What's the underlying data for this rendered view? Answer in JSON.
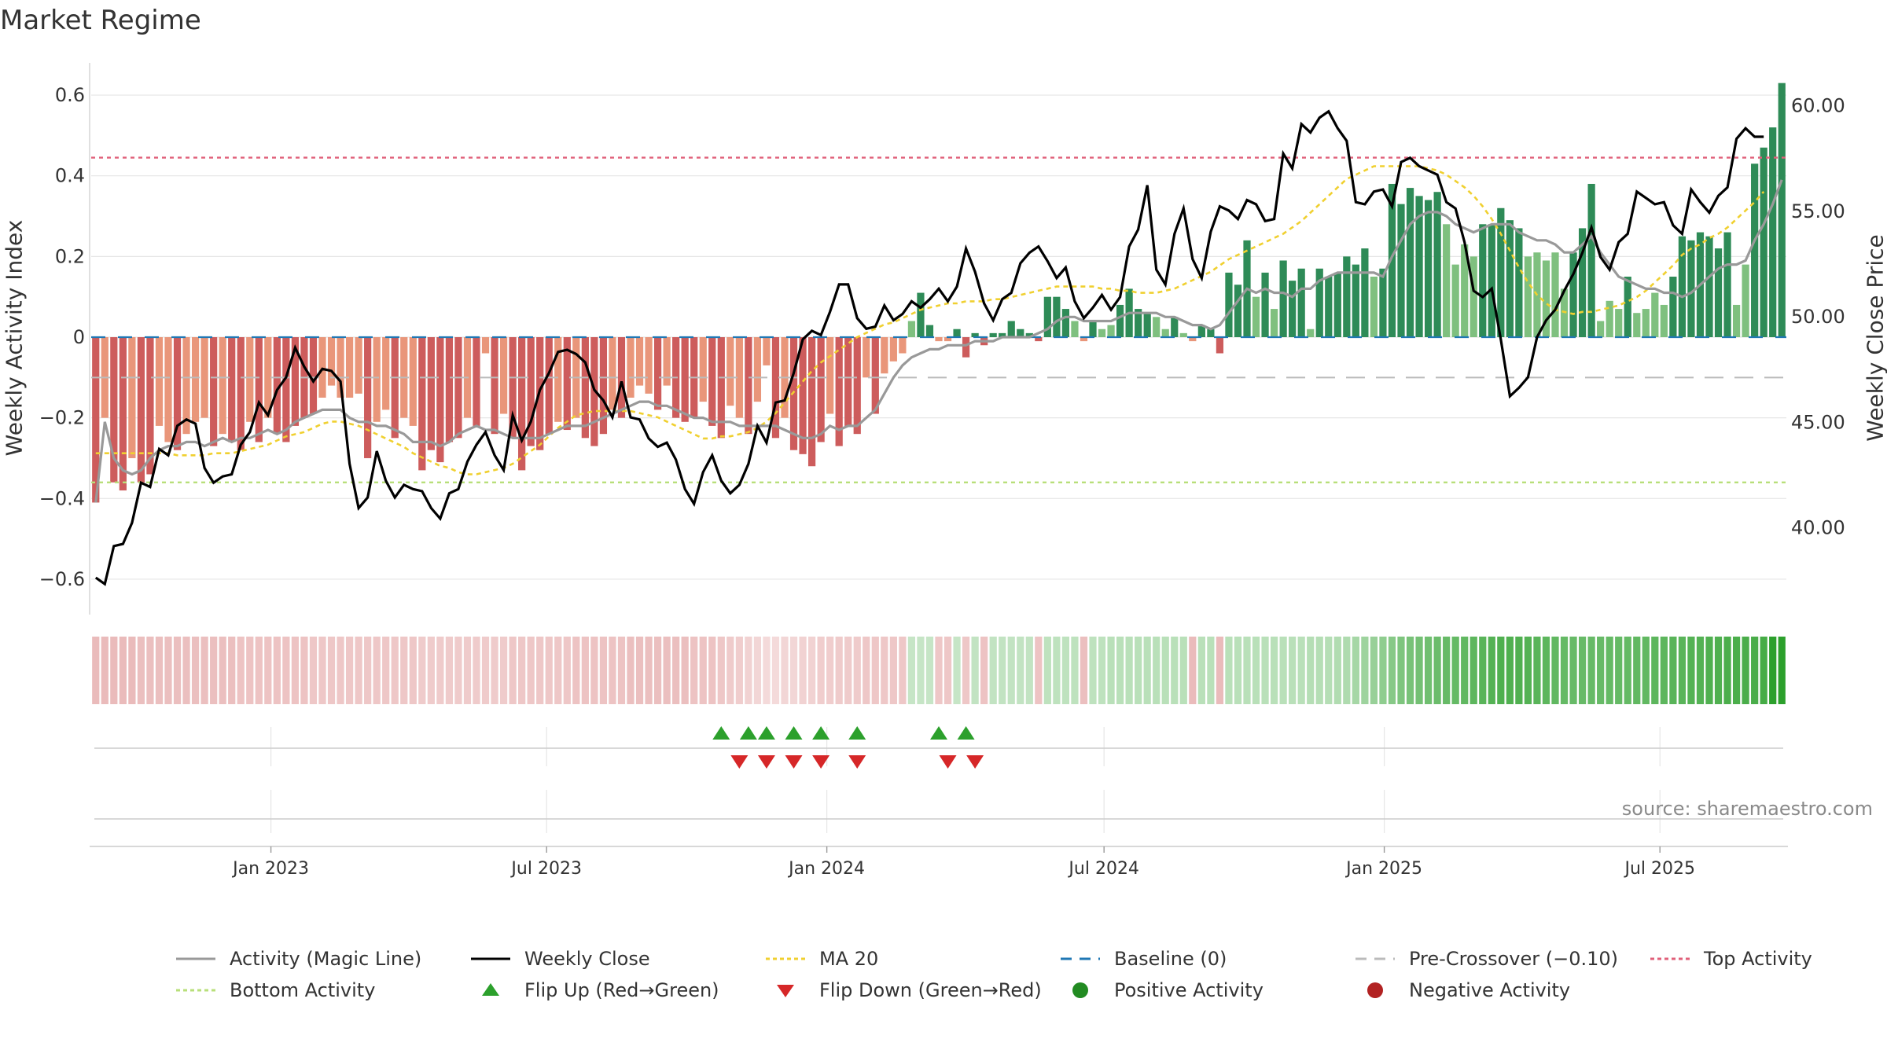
{
  "title": "Market Regime",
  "source": "source: sharemaestro.com",
  "colors": {
    "neg_dark": "#cd5c5c",
    "neg_light": "#e9967a",
    "pos_dark": "#2e8b57",
    "pos_light": "#7fc07f",
    "close": "#000000",
    "magic": "#999999",
    "ma": "#f0d030",
    "baseline": "#1f77b4",
    "pre_cross": "#bbbbbb",
    "top": "#e0607a",
    "bottom": "#b8df7a",
    "flip_up": "#2ca02c",
    "flip_down": "#d62728"
  },
  "chart_data": {
    "type": "bar",
    "title": "Market Regime",
    "ylabel": "Weekly Activity Index",
    "ylabel_right": "Weekly Close Price",
    "ylim": [
      -0.68,
      0.68
    ],
    "ylim_right": [
      36.0,
      62.0
    ],
    "yticks": [
      -0.6,
      -0.4,
      -0.2,
      0,
      0.2,
      0.4,
      0.6
    ],
    "ytick_labels": [
      "−0.6",
      "−0.4",
      "−0.2",
      "0",
      "0.2",
      "0.4",
      "0.6"
    ],
    "yticks_right": [
      40,
      45,
      50,
      55,
      60
    ],
    "ytick_labels_right": [
      "40.00",
      "45.00",
      "50.00",
      "55.00",
      "60.00"
    ],
    "x_start": "2022-09-05",
    "x_end": "2025-09-22",
    "xticks": [
      "2023-01-01",
      "2023-07-01",
      "2024-01-01",
      "2024-07-01",
      "2025-01-01",
      "2025-07-01"
    ],
    "xtick_labels": [
      "Jan 2023",
      "Jul 2023",
      "Jan 2024",
      "Jul 2024",
      "Jan 2025",
      "Jul 2025"
    ],
    "grid": true,
    "legend_position": "bottom",
    "reference_lines": {
      "baseline": 0,
      "pre_crossover": -0.1,
      "top_activity": 0.445,
      "bottom_activity": -0.36
    },
    "activity_weekly": [
      -0.41,
      -0.2,
      -0.36,
      -0.38,
      -0.3,
      -0.36,
      -0.34,
      -0.22,
      -0.26,
      -0.28,
      -0.24,
      -0.21,
      -0.2,
      -0.27,
      -0.24,
      -0.26,
      -0.28,
      -0.21,
      -0.26,
      -0.2,
      -0.24,
      -0.26,
      -0.22,
      -0.2,
      -0.19,
      -0.15,
      -0.12,
      -0.15,
      -0.15,
      -0.14,
      -0.3,
      -0.21,
      -0.18,
      -0.25,
      -0.2,
      -0.22,
      -0.33,
      -0.28,
      -0.31,
      -0.26,
      -0.25,
      -0.2,
      -0.22,
      -0.04,
      -0.24,
      -0.19,
      -0.25,
      -0.33,
      -0.27,
      -0.28,
      -0.24,
      -0.21,
      -0.23,
      -0.2,
      -0.25,
      -0.27,
      -0.24,
      -0.18,
      -0.2,
      -0.15,
      -0.12,
      -0.14,
      -0.18,
      -0.12,
      -0.2,
      -0.21,
      -0.2,
      -0.16,
      -0.22,
      -0.25,
      -0.17,
      -0.2,
      -0.24,
      -0.16,
      -0.07,
      -0.25,
      -0.2,
      -0.28,
      -0.29,
      -0.32,
      -0.26,
      -0.19,
      -0.27,
      -0.22,
      -0.24,
      -0.1,
      -0.19,
      -0.09,
      -0.06,
      -0.04,
      0.04,
      0.11,
      0.03,
      -0.01,
      -0.01,
      0.02,
      -0.05,
      0.01,
      -0.02,
      0.01,
      0.01,
      0.04,
      0.02,
      0.01,
      -0.01,
      0.1,
      0.1,
      0.07,
      0.04,
      -0.01,
      0.04,
      0.02,
      0.03,
      0.08,
      0.12,
      0.07,
      0.06,
      0.05,
      0.02,
      0.05,
      0.01,
      -0.01,
      0.03,
      0.02,
      -0.04,
      0.16,
      0.13,
      0.24,
      0.1,
      0.16,
      0.07,
      0.19,
      0.14,
      0.17,
      0.02,
      0.17,
      0.15,
      0.16,
      0.2,
      0.18,
      0.22,
      0.15,
      0.17,
      0.38,
      0.33,
      0.37,
      0.35,
      0.34,
      0.36,
      0.28,
      0.18,
      0.23,
      0.2,
      0.28,
      0.28,
      0.32,
      0.29,
      0.27,
      0.2,
      0.21,
      0.19,
      0.21,
      0.12,
      0.21,
      0.27,
      0.38,
      0.04,
      0.09,
      0.07,
      0.15,
      0.06,
      0.07,
      0.11,
      0.08,
      0.15,
      0.25,
      0.24,
      0.26,
      0.25,
      0.22,
      0.26,
      0.08,
      0.18,
      0.43,
      0.47,
      0.52,
      0.63
    ],
    "weekly_close": [
      37.6,
      37.3,
      39.1,
      39.2,
      40.2,
      42.1,
      41.9,
      43.7,
      43.4,
      44.8,
      45.1,
      44.9,
      42.8,
      42.1,
      42.4,
      42.5,
      43.9,
      44.5,
      45.9,
      45.3,
      46.5,
      47.1,
      48.5,
      47.6,
      46.9,
      47.5,
      47.4,
      46.9,
      43.0,
      40.9,
      41.4,
      43.6,
      42.2,
      41.4,
      42.0,
      41.8,
      41.7,
      40.9,
      40.4,
      41.6,
      41.8,
      43.1,
      43.9,
      44.5,
      43.4,
      42.7,
      45.3,
      44.1,
      45.0,
      46.5,
      47.3,
      48.3,
      48.4,
      48.2,
      47.8,
      46.5,
      46.0,
      45.2,
      46.9,
      45.2,
      45.1,
      44.2,
      43.8,
      44.0,
      43.2,
      41.8,
      41.1,
      42.6,
      43.4,
      42.2,
      41.6,
      42.0,
      43.0,
      44.8,
      44.0,
      45.9,
      46.0,
      47.3,
      48.9,
      49.3,
      49.1,
      50.2,
      51.5,
      51.5,
      49.9,
      49.4,
      49.5,
      50.5,
      49.8,
      50.1,
      50.7,
      50.4,
      50.8,
      51.3,
      50.7,
      51.4,
      53.2,
      52.1,
      50.6,
      49.8,
      50.8,
      51.1,
      52.5,
      53.0,
      53.3,
      52.6,
      51.8,
      52.3,
      50.7,
      49.9,
      50.4,
      51.0,
      50.3,
      50.9,
      53.3,
      54.1,
      56.2,
      52.2,
      51.5,
      53.9,
      55.1,
      52.7,
      51.8,
      54.0,
      55.2,
      55.0,
      54.6,
      55.5,
      55.3,
      54.5,
      54.6,
      57.7,
      57.0,
      59.1,
      58.7,
      59.4,
      59.7,
      58.9,
      58.3,
      55.4,
      55.3,
      55.9,
      56.0,
      55.2,
      57.3,
      57.5,
      57.1,
      56.9,
      56.7,
      55.4,
      55.1,
      53.5,
      51.2,
      50.9,
      51.3,
      48.9,
      46.2,
      46.6,
      47.1,
      49.0,
      49.8,
      50.3,
      51.2,
      52.0,
      53.0,
      54.2,
      52.8,
      52.2,
      53.5,
      53.9,
      55.9,
      55.6,
      55.3,
      55.4,
      54.3,
      53.9,
      56.0,
      55.4,
      54.9,
      55.7,
      56.1,
      58.4,
      58.9,
      58.5,
      58.5
    ],
    "activity_magic_line": [
      -0.41,
      -0.21,
      -0.3,
      -0.33,
      -0.34,
      -0.33,
      -0.3,
      -0.28,
      -0.27,
      -0.27,
      -0.26,
      -0.26,
      -0.27,
      -0.26,
      -0.25,
      -0.26,
      -0.25,
      -0.25,
      -0.24,
      -0.23,
      -0.24,
      -0.23,
      -0.21,
      -0.2,
      -0.19,
      -0.18,
      -0.18,
      -0.18,
      -0.2,
      -0.21,
      -0.21,
      -0.22,
      -0.22,
      -0.23,
      -0.24,
      -0.26,
      -0.26,
      -0.26,
      -0.27,
      -0.26,
      -0.24,
      -0.23,
      -0.22,
      -0.23,
      -0.23,
      -0.24,
      -0.25,
      -0.25,
      -0.25,
      -0.25,
      -0.24,
      -0.23,
      -0.22,
      -0.22,
      -0.22,
      -0.21,
      -0.2,
      -0.19,
      -0.18,
      -0.17,
      -0.16,
      -0.16,
      -0.17,
      -0.17,
      -0.18,
      -0.19,
      -0.2,
      -0.2,
      -0.21,
      -0.21,
      -0.21,
      -0.22,
      -0.22,
      -0.22,
      -0.22,
      -0.22,
      -0.23,
      -0.24,
      -0.25,
      -0.25,
      -0.24,
      -0.22,
      -0.23,
      -0.22,
      -0.22,
      -0.2,
      -0.18,
      -0.14,
      -0.1,
      -0.07,
      -0.05,
      -0.04,
      -0.03,
      -0.03,
      -0.02,
      -0.02,
      -0.02,
      -0.01,
      -0.01,
      -0.01,
      0.0,
      0.0,
      0.0,
      0.0,
      0.01,
      0.02,
      0.04,
      0.05,
      0.05,
      0.04,
      0.04,
      0.04,
      0.04,
      0.05,
      0.06,
      0.06,
      0.06,
      0.06,
      0.05,
      0.05,
      0.04,
      0.03,
      0.03,
      0.02,
      0.03,
      0.06,
      0.09,
      0.12,
      0.11,
      0.12,
      0.11,
      0.11,
      0.1,
      0.12,
      0.12,
      0.14,
      0.15,
      0.16,
      0.16,
      0.16,
      0.16,
      0.16,
      0.15,
      0.2,
      0.24,
      0.28,
      0.3,
      0.31,
      0.31,
      0.3,
      0.28,
      0.27,
      0.26,
      0.27,
      0.28,
      0.28,
      0.28,
      0.26,
      0.25,
      0.24,
      0.24,
      0.23,
      0.21,
      0.21,
      0.23,
      0.25,
      0.21,
      0.18,
      0.15,
      0.14,
      0.13,
      0.12,
      0.12,
      0.11,
      0.11,
      0.1,
      0.11,
      0.13,
      0.15,
      0.17,
      0.18,
      0.18,
      0.19,
      0.24,
      0.28,
      0.33,
      0.39
    ],
    "ma20": [
      43.5,
      43.5,
      43.5,
      43.5,
      43.5,
      43.5,
      43.5,
      43.5,
      43.5,
      43.4,
      43.4,
      43.4,
      43.4,
      43.5,
      43.5,
      43.5,
      43.6,
      43.7,
      43.8,
      43.9,
      44.1,
      44.3,
      44.4,
      44.5,
      44.7,
      44.9,
      45.0,
      45.0,
      44.9,
      44.8,
      44.6,
      44.4,
      44.2,
      44.0,
      43.8,
      43.5,
      43.3,
      43.1,
      42.9,
      42.8,
      42.6,
      42.5,
      42.5,
      42.6,
      42.7,
      42.8,
      43.0,
      43.3,
      43.6,
      43.9,
      44.3,
      44.7,
      45.0,
      45.3,
      45.4,
      45.5,
      45.5,
      45.5,
      45.5,
      45.5,
      45.4,
      45.3,
      45.2,
      45.0,
      44.8,
      44.6,
      44.4,
      44.2,
      44.2,
      44.3,
      44.3,
      44.4,
      44.5,
      44.7,
      45.0,
      45.4,
      45.9,
      46.4,
      46.9,
      47.4,
      47.8,
      48.1,
      48.4,
      48.7,
      49.0,
      49.2,
      49.4,
      49.6,
      49.7,
      49.9,
      50.1,
      50.3,
      50.4,
      50.5,
      50.6,
      50.6,
      50.7,
      50.7,
      50.7,
      50.8,
      50.8,
      50.9,
      51.0,
      51.1,
      51.2,
      51.3,
      51.4,
      51.4,
      51.4,
      51.4,
      51.4,
      51.3,
      51.3,
      51.2,
      51.2,
      51.1,
      51.1,
      51.1,
      51.2,
      51.3,
      51.5,
      51.7,
      51.9,
      52.1,
      52.4,
      52.7,
      52.9,
      53.1,
      53.3,
      53.5,
      53.7,
      53.9,
      54.2,
      54.5,
      54.9,
      55.3,
      55.7,
      56.1,
      56.5,
      56.7,
      56.9,
      57.1,
      57.1,
      57.1,
      57.1,
      57.1,
      57.1,
      57.0,
      56.9,
      56.7,
      56.4,
      56.1,
      55.7,
      55.2,
      54.6,
      53.9,
      53.1,
      52.3,
      51.6,
      51.0,
      50.6,
      50.3,
      50.2,
      50.1,
      50.2,
      50.2,
      50.3,
      50.4,
      50.5,
      50.7,
      50.9,
      51.2,
      51.6,
      52.0,
      52.4,
      52.9,
      53.2,
      53.4,
      53.7,
      53.9,
      54.2,
      54.6,
      55.0,
      55.4,
      55.9
    ],
    "activity_bar": [
      0.09,
      0.09,
      0.09,
      0.09,
      0.09,
      0.08,
      0.08,
      0.08,
      0.08,
      0.08,
      0.08,
      0.08,
      0.08,
      0.08,
      0.08,
      0.08,
      0.07,
      0.07,
      0.07,
      0.07,
      0.07,
      0.07,
      0.07,
      0.07,
      0.06,
      0.06,
      0.06,
      0.06,
      0.06,
      0.06,
      0.06,
      0.06,
      0.06,
      0.06,
      0.06,
      0.06,
      0.05,
      0.05,
      0.05,
      0.05,
      0.05,
      0.05,
      0.05,
      0.05,
      0.05,
      0.05,
      0.06,
      0.06,
      0.06,
      0.06,
      0.06,
      0.06,
      0.06,
      0.07,
      0.07,
      0.07,
      0.07,
      0.07,
      0.07,
      0.08,
      0.08,
      0.08,
      0.08,
      0.08,
      0.08,
      0.08,
      0.07,
      0.07,
      0.07,
      0.06,
      0.05,
      0.04,
      0.03,
      0.02,
      0.01,
      0.01,
      0.02,
      0.02,
      0.03,
      0.03,
      0.04,
      0.04,
      0.05,
      0.05,
      0.05,
      0.06,
      0.06,
      0.06,
      0.06,
      0.06,
      0.06,
      0.06,
      0.06,
      0.06,
      0.06,
      0.06,
      0.06,
      0.07,
      0.07,
      0.07,
      0.07,
      0.07,
      0.07,
      0.07,
      0.07,
      0.08,
      0.08,
      0.08,
      0.08,
      0.08,
      0.08,
      0.08,
      0.09,
      0.09,
      0.09,
      0.09,
      0.09,
      0.09,
      0.09,
      0.09,
      0.09,
      0.09,
      0.09,
      0.09,
      0.09,
      0.09,
      0.09,
      0.09,
      0.09,
      0.09,
      0.09,
      0.09,
      0.09,
      0.09,
      0.1,
      0.1,
      0.1,
      0.11,
      0.12,
      0.14,
      0.16,
      0.18,
      0.2,
      0.22,
      0.24,
      0.26,
      0.27,
      0.28,
      0.29,
      0.3,
      0.31,
      0.32,
      0.33,
      0.34,
      0.35,
      0.36,
      0.36,
      0.36,
      0.35,
      0.34,
      0.33,
      0.32,
      0.31,
      0.3,
      0.3,
      0.3,
      0.3,
      0.31,
      0.31,
      0.31,
      0.32,
      0.32,
      0.33,
      0.33,
      0.34,
      0.34,
      0.35,
      0.35,
      0.36,
      0.36,
      0.37,
      0.37,
      0.38,
      0.38,
      0.39
    ],
    "flip_up_weeks": [
      69,
      72,
      74,
      77,
      80,
      84,
      93,
      96
    ],
    "flip_down_weeks": [
      71,
      74,
      77,
      80,
      84,
      94,
      97
    ]
  },
  "legend": [
    {
      "label": "Activity (Magic Line)",
      "key": "magic",
      "style": "solid"
    },
    {
      "label": "Weekly Close",
      "key": "close",
      "style": "solid"
    },
    {
      "label": "MA 20",
      "key": "ma",
      "style": "dotted"
    },
    {
      "label": "Baseline (0)",
      "key": "baseline",
      "style": "dashed"
    },
    {
      "label": "Pre-Crossover (−0.10)",
      "key": "pre_cross",
      "style": "dashed"
    },
    {
      "label": "Top Activity",
      "key": "top",
      "style": "dotted"
    },
    {
      "label": "Bottom Activity",
      "key": "bottom",
      "style": "dotted"
    },
    {
      "label": "Flip Up (Red→Green)",
      "key": "flip_up",
      "style": "triangle-up"
    },
    {
      "label": "Flip Down (Green→Red)",
      "key": "flip_down",
      "style": "triangle-down"
    },
    {
      "label": "Positive Activity",
      "key": "pos_dark",
      "style": "dot"
    },
    {
      "label": "Negative Activity",
      "key": "flip_down",
      "style": "dot"
    }
  ]
}
